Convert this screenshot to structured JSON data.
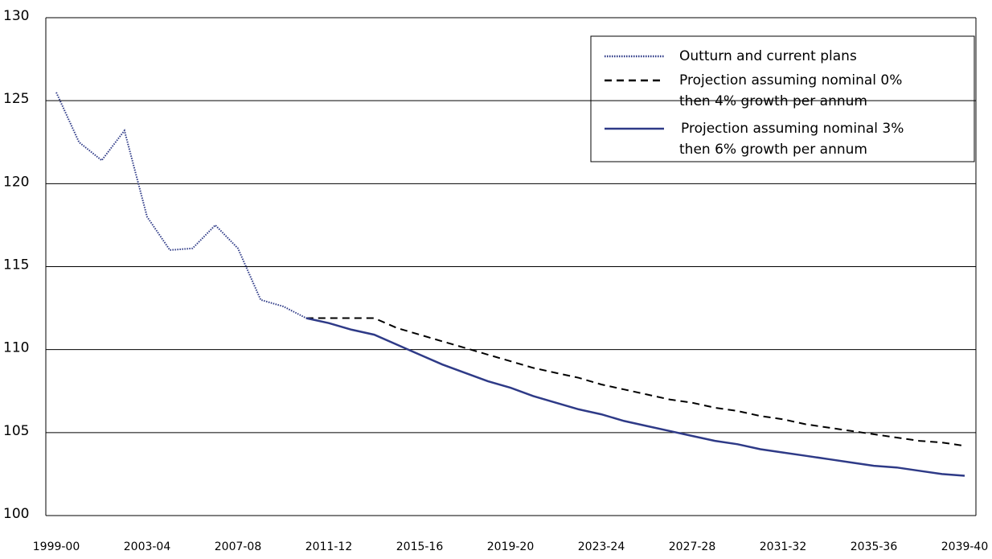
{
  "chart_data": {
    "type": "line",
    "categories": [
      "1999-00",
      null,
      null,
      null,
      "2003-04",
      null,
      null,
      null,
      "2007-08",
      null,
      null,
      null,
      "2011-12",
      null,
      null,
      null,
      "2015-16",
      null,
      null,
      null,
      "2019-20",
      null,
      null,
      null,
      "2023-24",
      null,
      null,
      null,
      "2027-28",
      null,
      null,
      null,
      "2031-32",
      null,
      null,
      null,
      "2035-36",
      null,
      null,
      null,
      "2039-40"
    ],
    "series": [
      {
        "name": "Outturn and current plans",
        "color": "#2e3a87",
        "style": "dotted",
        "values": [
          125.5,
          122.5,
          121.4,
          123.2,
          118.0,
          116.0,
          116.1,
          117.5,
          116.1,
          113.0,
          112.6,
          111.9,
          null,
          null,
          null,
          null,
          null,
          null,
          null,
          null,
          null,
          null,
          null,
          null,
          null,
          null,
          null,
          null,
          null,
          null,
          null,
          null,
          null,
          null,
          null,
          null,
          null,
          null,
          null,
          null,
          null
        ]
      },
      {
        "name": "Projection assuming nominal 0%\nthen 4% growth per annum",
        "color": "#000000",
        "style": "dashed",
        "values": [
          null,
          null,
          null,
          null,
          null,
          null,
          null,
          null,
          null,
          null,
          null,
          111.9,
          111.9,
          111.9,
          111.9,
          111.3,
          110.9,
          110.5,
          110.1,
          109.7,
          109.3,
          108.9,
          108.6,
          108.3,
          107.9,
          107.6,
          107.3,
          107.0,
          106.8,
          106.5,
          106.3,
          106.0,
          105.8,
          105.5,
          105.3,
          105.1,
          104.9,
          104.7,
          104.5,
          104.4,
          104.2
        ]
      },
      {
        "name": "Projection assuming nominal 3%\nthen 6% growth per annum",
        "color": "#2e3a87",
        "style": "solid",
        "values": [
          null,
          null,
          null,
          null,
          null,
          null,
          null,
          null,
          null,
          null,
          null,
          111.9,
          111.6,
          111.2,
          110.9,
          110.3,
          109.7,
          109.1,
          108.6,
          108.1,
          107.7,
          107.2,
          106.8,
          106.4,
          106.1,
          105.7,
          105.4,
          105.1,
          104.8,
          104.5,
          104.3,
          104.0,
          103.8,
          103.6,
          103.4,
          103.2,
          103.0,
          102.9,
          102.7,
          102.5,
          102.4
        ]
      }
    ],
    "ylim": [
      100,
      130
    ],
    "yticks": [
      100,
      105,
      110,
      115,
      120,
      125,
      130
    ],
    "grid": true
  }
}
